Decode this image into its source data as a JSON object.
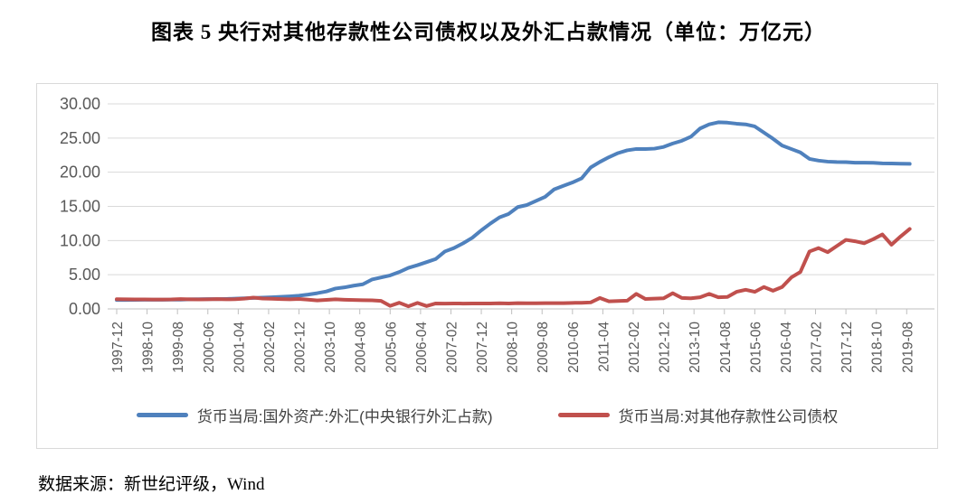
{
  "title": "图表 5  央行对其他存款性公司债权以及外汇占款情况（单位：万亿元）",
  "source": "数据来源：新世纪评级，Wind",
  "colors": {
    "blue": "#4F81BD",
    "red": "#C0504D",
    "grid": "#D9D9D9",
    "axis": "#BFBFBF",
    "tick_label": "#595959"
  },
  "chart_data": {
    "type": "line",
    "unit": "万亿元",
    "ylim": [
      0,
      30
    ],
    "grid": true,
    "legend_position": "bottom",
    "y_tick_labels": [
      "0.00",
      "5.00",
      "10.00",
      "15.00",
      "20.00",
      "25.00",
      "30.00"
    ],
    "x_tick_labels": [
      "1997-12",
      "1998-10",
      "1999-08",
      "2000-06",
      "2001-04",
      "2002-02",
      "2002-12",
      "2003-10",
      "2004-08",
      "2005-06",
      "2006-04",
      "2007-02",
      "2007-12",
      "2008-10",
      "2009-08",
      "2010-06",
      "2011-04",
      "2012-02",
      "2012-12",
      "2013-10",
      "2014-08",
      "2015-06",
      "2016-04",
      "2017-02",
      "2017-12",
      "2018-10",
      "2019-08"
    ],
    "x_label_interval_months": 10,
    "data_interval_months": 3,
    "x_start": "1997-12",
    "series": [
      {
        "name": "货币当局:国外资产:外汇(中央银行外汇占款)",
        "color": "#4F81BD",
        "values": [
          1.3,
          1.31,
          1.32,
          1.33,
          1.34,
          1.34,
          1.35,
          1.36,
          1.41,
          1.42,
          1.43,
          1.44,
          1.46,
          1.5,
          1.55,
          1.6,
          1.65,
          1.7,
          1.76,
          1.84,
          1.93,
          2.1,
          2.3,
          2.55,
          2.98,
          3.15,
          3.4,
          3.6,
          4.3,
          4.6,
          4.9,
          5.4,
          6.0,
          6.4,
          6.85,
          7.3,
          8.4,
          8.9,
          9.6,
          10.4,
          11.5,
          12.5,
          13.4,
          13.9,
          14.9,
          15.2,
          15.8,
          16.4,
          17.5,
          18.0,
          18.5,
          19.1,
          20.7,
          21.5,
          22.2,
          22.8,
          23.2,
          23.4,
          23.4,
          23.45,
          23.7,
          24.2,
          24.6,
          25.2,
          26.4,
          27.0,
          27.3,
          27.25,
          27.1,
          27.0,
          26.7,
          25.8,
          24.9,
          23.9,
          23.4,
          22.9,
          21.95,
          21.7,
          21.55,
          21.5,
          21.48,
          21.4,
          21.4,
          21.38,
          21.3,
          21.28,
          21.25,
          21.22
        ]
      },
      {
        "name": "货币当局:对其他存款性公司债权",
        "color": "#C0504D",
        "values": [
          1.42,
          1.4,
          1.39,
          1.38,
          1.37,
          1.37,
          1.38,
          1.43,
          1.4,
          1.38,
          1.4,
          1.43,
          1.4,
          1.42,
          1.5,
          1.65,
          1.52,
          1.48,
          1.44,
          1.4,
          1.46,
          1.36,
          1.24,
          1.32,
          1.4,
          1.34,
          1.3,
          1.28,
          1.25,
          1.18,
          0.45,
          0.9,
          0.38,
          0.88,
          0.42,
          0.8,
          0.78,
          0.8,
          0.78,
          0.8,
          0.79,
          0.8,
          0.82,
          0.8,
          0.84,
          0.83,
          0.82,
          0.84,
          0.85,
          0.85,
          0.88,
          0.9,
          0.95,
          1.6,
          1.1,
          1.15,
          1.2,
          2.2,
          1.45,
          1.5,
          1.55,
          2.3,
          1.6,
          1.55,
          1.7,
          2.2,
          1.7,
          1.75,
          2.5,
          2.8,
          2.5,
          3.2,
          2.66,
          3.2,
          4.6,
          5.4,
          8.4,
          8.9,
          8.3,
          9.2,
          10.1,
          9.9,
          9.6,
          10.2,
          10.9,
          9.4,
          10.6,
          11.7
        ]
      }
    ]
  }
}
